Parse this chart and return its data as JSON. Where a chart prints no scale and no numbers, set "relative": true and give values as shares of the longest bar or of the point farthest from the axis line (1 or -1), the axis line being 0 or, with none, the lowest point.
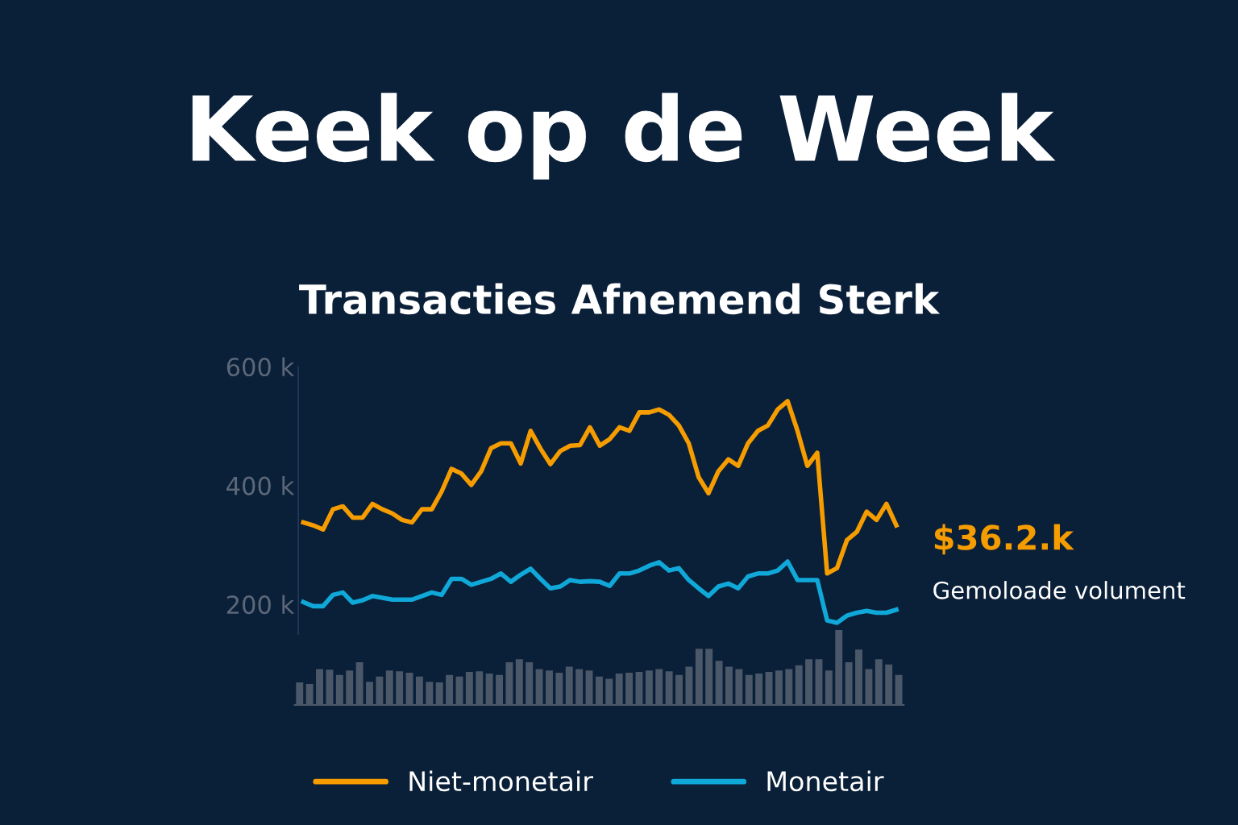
{
  "chart_data": [
    {
      "type": "line",
      "title": "Keek op de Week",
      "subtitle": "Transacties Afnemend Sterk",
      "categories": [
        null,
        null,
        null,
        null,
        null,
        null,
        null,
        null,
        null,
        null,
        null,
        null,
        null,
        null,
        null,
        null,
        null,
        null,
        null,
        null,
        null,
        null,
        null,
        null,
        null,
        null,
        null,
        null,
        null,
        null,
        null,
        null,
        null,
        null,
        null,
        null,
        null,
        null,
        null,
        null,
        null,
        null,
        null,
        null,
        null,
        null,
        null,
        null,
        null,
        null,
        null,
        null,
        null,
        null,
        null,
        null,
        null,
        null,
        null,
        null,
        null
      ],
      "series": [
        {
          "name": "Niet-monetair",
          "color": "#f59c00",
          "values": [
            338,
            333,
            326,
            360,
            365,
            346,
            346,
            369,
            360,
            353,
            342,
            338,
            360,
            360,
            390,
            428,
            420,
            401,
            424,
            463,
            471,
            471,
            437,
            492,
            462,
            436,
            458,
            467,
            468,
            498,
            467,
            478,
            498,
            492,
            523,
            523,
            528,
            519,
            501,
            471,
            414,
            387,
            424,
            444,
            433,
            471,
            492,
            501,
            528,
            542,
            492,
            433,
            455,
            252,
            261,
            308,
            322,
            356,
            342,
            369,
            333
          ]
        },
        {
          "name": "Monetair",
          "color": "#10a8d8",
          "values": [
            204,
            197,
            197,
            216,
            220,
            203,
            207,
            214,
            211,
            208,
            208,
            208,
            214,
            220,
            216,
            243,
            243,
            233,
            238,
            243,
            252,
            238,
            250,
            260,
            243,
            227,
            230,
            241,
            238,
            239,
            238,
            231,
            252,
            252,
            257,
            265,
            271,
            257,
            261,
            241,
            227,
            214,
            230,
            235,
            227,
            247,
            252,
            252,
            257,
            272,
            241,
            241,
            241,
            173,
            169,
            181,
            186,
            189,
            186,
            186,
            191
          ]
        }
      ],
      "ylim": [
        150,
        600
      ],
      "yticks": [
        {
          "value": 200,
          "label": "200 k"
        },
        {
          "value": 400,
          "label": "400 k"
        },
        {
          "value": 600,
          "label": "600 k"
        }
      ],
      "tick_labels": "y",
      "grid": false,
      "legend": "bottom",
      "line_style": "solid",
      "marker": "none",
      "annotations": [
        "$36.2.k",
        "Gemoloade volument"
      ]
    },
    {
      "type": "bar",
      "relative": true,
      "color": "#4b5869",
      "tick_labels": false,
      "categories": [
        null,
        null,
        null,
        null,
        null,
        null,
        null,
        null,
        null,
        null,
        null,
        null,
        null,
        null,
        null,
        null,
        null,
        null,
        null,
        null,
        null,
        null,
        null,
        null,
        null,
        null,
        null,
        null,
        null,
        null,
        null,
        null,
        null,
        null,
        null,
        null,
        null,
        null,
        null,
        null,
        null,
        null,
        null,
        null,
        null,
        null,
        null,
        null,
        null,
        null,
        null,
        null,
        null,
        null,
        null,
        null,
        null,
        null,
        null,
        null,
        null
      ],
      "values": [
        0.3,
        0.28,
        0.48,
        0.47,
        0.4,
        0.46,
        0.57,
        0.31,
        0.38,
        0.46,
        0.45,
        0.43,
        0.38,
        0.31,
        0.3,
        0.4,
        0.38,
        0.44,
        0.45,
        0.42,
        0.4,
        0.57,
        0.61,
        0.57,
        0.48,
        0.46,
        0.43,
        0.51,
        0.48,
        0.46,
        0.38,
        0.35,
        0.42,
        0.43,
        0.44,
        0.46,
        0.48,
        0.45,
        0.4,
        0.51,
        0.75,
        0.75,
        0.59,
        0.51,
        0.48,
        0.4,
        0.42,
        0.44,
        0.46,
        0.48,
        0.53,
        0.61,
        0.61,
        0.46,
        1,
        0.57,
        0.74,
        0.48,
        0.61,
        0.54,
        0.4
      ]
    }
  ]
}
